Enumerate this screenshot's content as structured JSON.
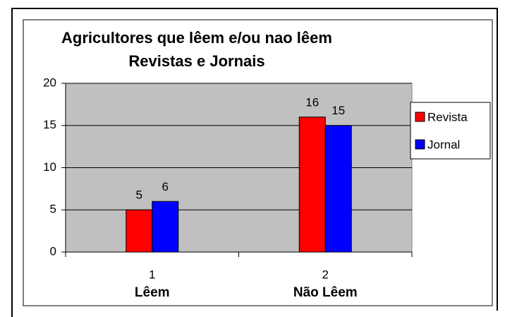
{
  "chart_data": {
    "type": "bar",
    "title": [
      "Agricultores que lêem e/ou nao lêem",
      "Revistas e Jornais"
    ],
    "categories": [
      "1",
      "2"
    ],
    "category_groups": [
      "Lêem",
      "Não Lêem"
    ],
    "series": [
      {
        "name": "Revista",
        "color": "#ff0000",
        "values": [
          5,
          16
        ]
      },
      {
        "name": "Jornal",
        "color": "#0000ff",
        "values": [
          6,
          15
        ]
      }
    ],
    "ylim": [
      0,
      20
    ],
    "yticks": [
      0,
      5,
      10,
      15,
      20
    ],
    "grid": true,
    "plot_background": "#c0c0c0",
    "legend": "right",
    "data_labels": true
  }
}
